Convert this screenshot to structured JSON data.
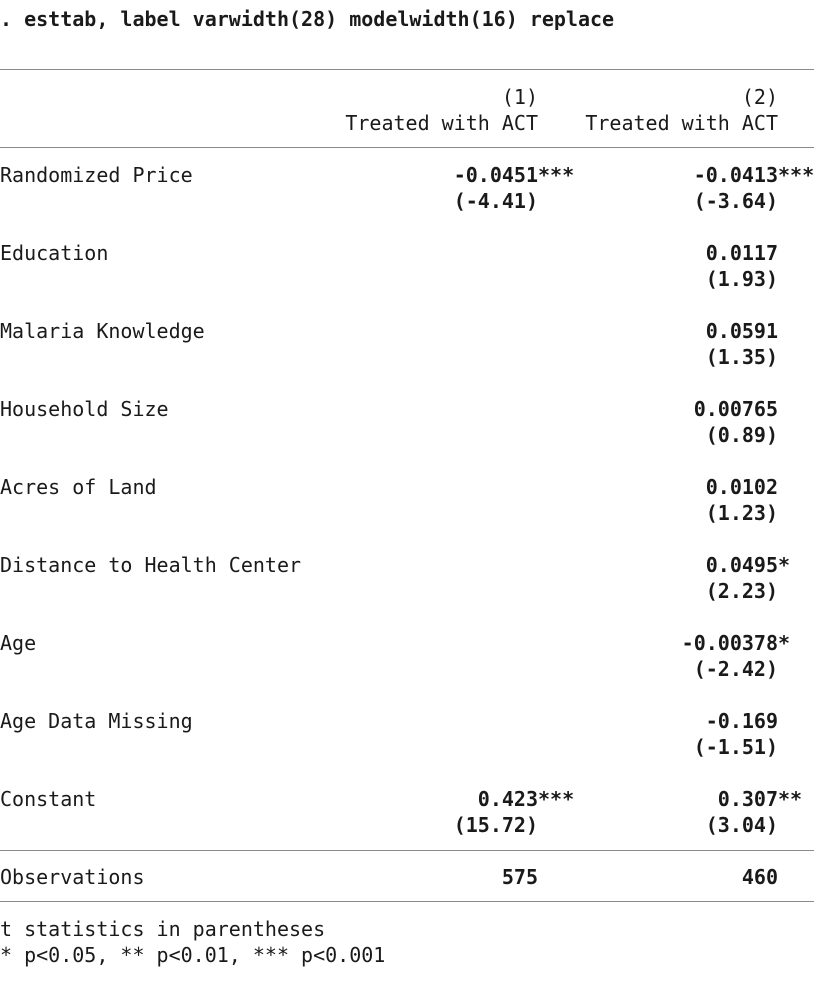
{
  "command": ". esttab, label varwidth(28) modelwidth(16) replace",
  "header": {
    "model_numbers": [
      "(1)",
      "(2)"
    ],
    "dep_vars": [
      "Treated with ACT",
      "Treated with ACT"
    ]
  },
  "rows": [
    {
      "label": "Randomized Price",
      "c1": {
        "coef": "-0.0451",
        "stars": "***",
        "t": "(-4.41)"
      },
      "c2": {
        "coef": "-0.0413",
        "stars": "***",
        "t": "(-3.64)"
      }
    },
    {
      "label": "Education",
      "c1": {
        "coef": "",
        "stars": "",
        "t": ""
      },
      "c2": {
        "coef": "0.0117",
        "stars": "",
        "t": "(1.93)"
      }
    },
    {
      "label": "Malaria Knowledge",
      "c1": {
        "coef": "",
        "stars": "",
        "t": ""
      },
      "c2": {
        "coef": "0.0591",
        "stars": "",
        "t": "(1.35)"
      }
    },
    {
      "label": "Household Size",
      "c1": {
        "coef": "",
        "stars": "",
        "t": ""
      },
      "c2": {
        "coef": "0.00765",
        "stars": "",
        "t": "(0.89)"
      }
    },
    {
      "label": "Acres of Land",
      "c1": {
        "coef": "",
        "stars": "",
        "t": ""
      },
      "c2": {
        "coef": "0.0102",
        "stars": "",
        "t": "(1.23)"
      }
    },
    {
      "label": "Distance to Health Center",
      "c1": {
        "coef": "",
        "stars": "",
        "t": ""
      },
      "c2": {
        "coef": "0.0495",
        "stars": "*",
        "t": "(2.23)"
      }
    },
    {
      "label": "Age",
      "c1": {
        "coef": "",
        "stars": "",
        "t": ""
      },
      "c2": {
        "coef": "-0.00378",
        "stars": "*",
        "t": "(-2.42)"
      }
    },
    {
      "label": "Age Data Missing",
      "c1": {
        "coef": "",
        "stars": "",
        "t": ""
      },
      "c2": {
        "coef": "-0.169",
        "stars": "",
        "t": "(-1.51)"
      }
    },
    {
      "label": "Constant",
      "c1": {
        "coef": "0.423",
        "stars": "***",
        "t": "(15.72)"
      },
      "c2": {
        "coef": "0.307",
        "stars": "**",
        "t": "(3.04)"
      }
    }
  ],
  "observations": {
    "label": "Observations",
    "c1": "575",
    "c2": "460"
  },
  "notes": [
    "t statistics in parentheses",
    "* p<0.05, ** p<0.01, *** p<0.001"
  ]
}
